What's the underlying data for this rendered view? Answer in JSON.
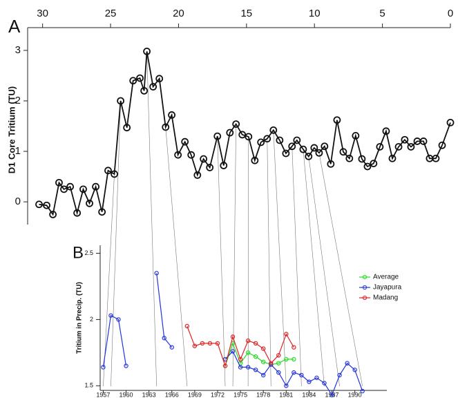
{
  "chart_data": [
    {
      "type": "line",
      "panel_label": "A",
      "ylabel": "D1 Core Tritium (TU)",
      "color": "#111111",
      "xaxis_position": "top",
      "x": [
        30.26,
        29.7,
        29.24,
        28.79,
        28.43,
        27.97,
        27.46,
        27.01,
        26.55,
        26.09,
        25.63,
        25.18,
        24.72,
        24.26,
        23.8,
        23.34,
        22.84,
        22.53,
        22.33,
        21.87,
        21.41,
        20.95,
        20.5,
        20.04,
        19.53,
        19.07,
        18.61,
        18.16,
        17.7,
        17.14,
        16.68,
        16.22,
        15.77,
        15.31,
        14.85,
        14.39,
        13.94,
        13.48,
        13.02,
        12.56,
        12.1,
        11.65,
        11.29,
        10.83,
        10.43,
        10.02,
        9.66,
        9.26,
        8.8,
        8.34,
        7.88,
        7.43,
        6.97,
        6.51,
        6.1,
        5.65,
        5.19,
        4.73,
        4.27,
        3.81,
        3.36,
        2.9,
        2.44,
        1.98,
        1.53,
        1.07,
        0.61,
        0
      ],
      "values": [
        -0.05,
        -0.07,
        -0.25,
        0.38,
        0.25,
        0.3,
        -0.22,
        0.25,
        -0.03,
        0.3,
        -0.2,
        0.62,
        0.55,
        2.0,
        1.47,
        2.4,
        2.45,
        2.2,
        2.98,
        2.28,
        2.44,
        1.48,
        1.72,
        0.93,
        1.19,
        0.93,
        0.53,
        0.85,
        0.68,
        1.3,
        0.72,
        1.37,
        1.54,
        1.33,
        1.29,
        0.82,
        1.18,
        1.25,
        1.42,
        1.22,
        0.96,
        1.1,
        1.22,
        1.04,
        0.9,
        1.07,
        0.97,
        1.1,
        0.75,
        1.62,
        0.99,
        0.86,
        1.31,
        0.85,
        0.7,
        0.76,
        1.09,
        1.4,
        0.86,
        1.09,
        1.23,
        1.09,
        1.2,
        1.2,
        0.86,
        0.86,
        1.12,
        1.57
      ],
      "xlim": [
        31.1,
        0
      ],
      "xticks": [
        30,
        25,
        20,
        15,
        10,
        5,
        0
      ],
      "ylim": [
        -0.45,
        3.3
      ],
      "yticks": [
        0,
        1,
        2,
        3
      ]
    },
    {
      "type": "line",
      "panel_label": "B",
      "ylabel": "Tritium in Precip. (TU)",
      "xaxis_position": "bottom",
      "legend": "right",
      "series": [
        {
          "name": "Average",
          "color": "#22dd22",
          "x": [
            1973,
            1974,
            1975,
            1976,
            1977,
            1978,
            1979,
            1980,
            1981,
            1982
          ],
          "values": [
            1.65,
            1.82,
            1.67,
            1.75,
            1.72,
            1.68,
            1.66,
            1.67,
            1.7,
            1.7
          ]
        },
        {
          "name": "Jayapura",
          "color": "#2233dd",
          "x": [
            1957,
            1958,
            1959,
            1960,
            1961,
            1964,
            1965,
            1966,
            1970,
            1973,
            1974,
            1975,
            1976,
            1977,
            1978,
            1979,
            1980,
            1981,
            1982,
            1983,
            1984,
            1985,
            1986,
            1987,
            1988,
            1989,
            1990,
            1991
          ],
          "values": [
            1.64,
            2.03,
            2.0,
            1.65,
            null,
            2.35,
            1.86,
            1.79,
            null,
            1.7,
            1.76,
            1.64,
            1.64,
            1.62,
            1.58,
            1.66,
            1.6,
            1.5,
            1.6,
            1.58,
            1.53,
            1.56,
            1.52,
            1.43,
            1.58,
            1.67,
            1.62,
            1.46
          ]
        },
        {
          "name": "Madang",
          "color": "#dd2222",
          "x": [
            1968,
            1969,
            1970,
            1971,
            1972,
            1973,
            1974,
            1975,
            1976,
            1977,
            1978,
            1979,
            1980,
            1981,
            1982
          ],
          "values": [
            1.95,
            1.8,
            1.82,
            1.82,
            1.82,
            1.65,
            1.87,
            1.7,
            1.84,
            1.82,
            1.78,
            1.67,
            1.73,
            1.89,
            1.79
          ]
        }
      ],
      "xlim": [
        1956.6,
        1994.2
      ],
      "xticks": [
        1957,
        1960,
        1963,
        1966,
        1969,
        1972,
        1975,
        1978,
        1981,
        1984,
        1987,
        1990
      ],
      "ylim": [
        1.465,
        2.56
      ],
      "yticks": [
        1.5,
        2,
        2.5
      ]
    }
  ],
  "tie_lines": [
    [
      24.72,
      1957
    ],
    [
      24.26,
      1958
    ],
    [
      22.33,
      1964
    ],
    [
      20.95,
      1968
    ],
    [
      17.14,
      1973
    ],
    [
      15.77,
      1974
    ],
    [
      14.85,
      1976
    ],
    [
      13.48,
      1979
    ],
    [
      13.02,
      1981
    ],
    [
      11.65,
      1983
    ],
    [
      10.83,
      1986
    ],
    [
      10.43,
      1988
    ],
    [
      9.66,
      1991
    ]
  ]
}
